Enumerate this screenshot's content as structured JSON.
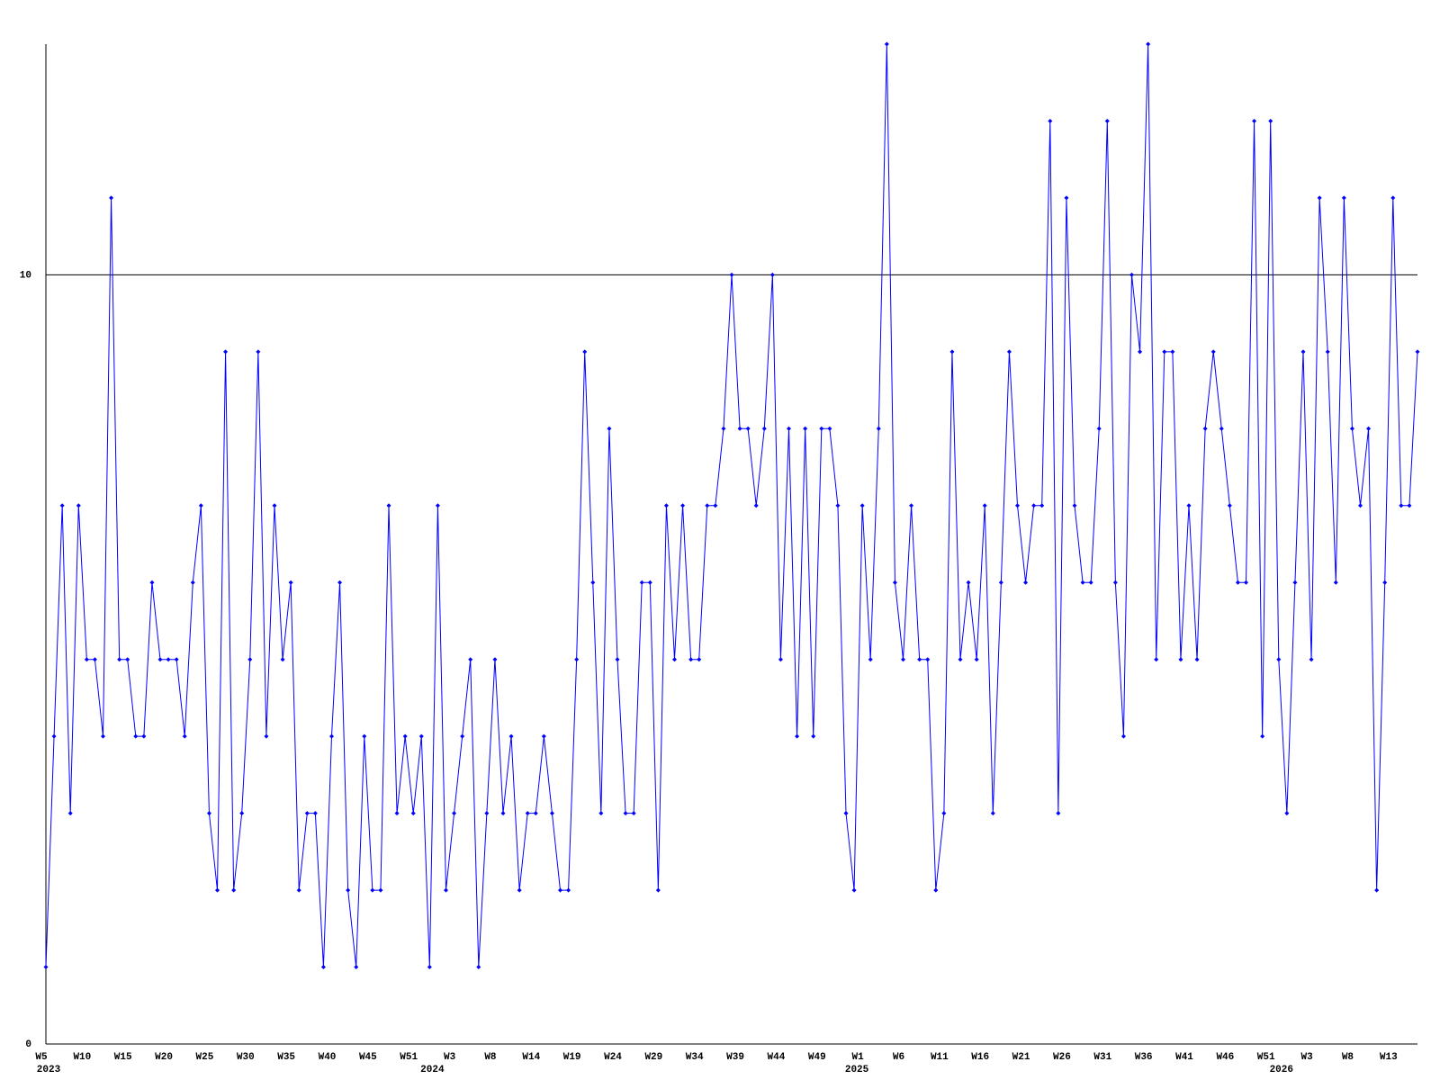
{
  "chart_data": {
    "type": "line",
    "categories": [
      "W5",
      null,
      null,
      null,
      null,
      "W10",
      null,
      null,
      null,
      null,
      "W15",
      null,
      null,
      null,
      null,
      "W20",
      null,
      null,
      null,
      null,
      "W25",
      null,
      null,
      null,
      null,
      "W30",
      null,
      null,
      null,
      null,
      "W35",
      null,
      null,
      null,
      null,
      "W40",
      null,
      null,
      null,
      null,
      "W45",
      null,
      null,
      null,
      null,
      "W51",
      null,
      null,
      null,
      null,
      "W3",
      null,
      null,
      null,
      null,
      "W8",
      null,
      null,
      null,
      null,
      "W14",
      null,
      null,
      null,
      null,
      "W19",
      null,
      null,
      null,
      null,
      "W24",
      null,
      null,
      null,
      null,
      "W29",
      null,
      null,
      null,
      null,
      "W34",
      null,
      null,
      null,
      null,
      "W39",
      null,
      null,
      null,
      null,
      "W44",
      null,
      null,
      null,
      null,
      "W49",
      null,
      null,
      null,
      null,
      "W1",
      null,
      null,
      null,
      null,
      "W6",
      null,
      null,
      null,
      null,
      "W11",
      null,
      null,
      null,
      null,
      "W16",
      null,
      null,
      null,
      null,
      "W21",
      null,
      null,
      null,
      null,
      "W26",
      null,
      null,
      null,
      null,
      "W31",
      null,
      null,
      null,
      null,
      "W36",
      null,
      null,
      null,
      null,
      "W41",
      null,
      null,
      null,
      null,
      "W46",
      null,
      null,
      null,
      null,
      "W51",
      null,
      null,
      null,
      null,
      "W3",
      null,
      null,
      null,
      null,
      "W8",
      null,
      null,
      null,
      null,
      "W13",
      null,
      null,
      null
    ],
    "year_labels": [
      "2023",
      null,
      null,
      null,
      null,
      null,
      null,
      null,
      null,
      null,
      null,
      null,
      null,
      null,
      null,
      null,
      null,
      null,
      null,
      null,
      null,
      null,
      null,
      null,
      null,
      null,
      null,
      null,
      null,
      null,
      null,
      null,
      null,
      null,
      null,
      null,
      null,
      null,
      null,
      null,
      null,
      null,
      null,
      null,
      null,
      null,
      null,
      "2024",
      null,
      null,
      null,
      null,
      null,
      null,
      null,
      null,
      null,
      null,
      null,
      null,
      null,
      null,
      null,
      null,
      null,
      null,
      null,
      null,
      null,
      null,
      null,
      null,
      null,
      null,
      null,
      null,
      null,
      null,
      null,
      null,
      null,
      null,
      null,
      null,
      null,
      null,
      null,
      null,
      null,
      null,
      null,
      null,
      null,
      null,
      null,
      null,
      null,
      null,
      null,
      "2025",
      null,
      null,
      null,
      null,
      null,
      null,
      null,
      null,
      null,
      null,
      null,
      null,
      null,
      null,
      null,
      null,
      null,
      null,
      null,
      null,
      null,
      null,
      null,
      null,
      null,
      null,
      null,
      null,
      null,
      null,
      null,
      null,
      null,
      null,
      null,
      null,
      null,
      null,
      null,
      null,
      null,
      null,
      null,
      null,
      null,
      null,
      null,
      null,
      null,
      null,
      null,
      "2026",
      null,
      null,
      null,
      null,
      null,
      null,
      null,
      null,
      null,
      null,
      null,
      null,
      null,
      null,
      null,
      null
    ],
    "values": [
      1,
      4,
      7,
      3,
      7,
      5,
      5,
      4,
      11,
      5,
      5,
      4,
      4,
      6,
      5,
      5,
      5,
      4,
      6,
      7,
      3,
      2,
      9,
      2,
      3,
      5,
      9,
      4,
      7,
      5,
      6,
      2,
      3,
      3,
      1,
      4,
      6,
      2,
      1,
      4,
      2,
      2,
      7,
      3,
      4,
      3,
      4,
      1,
      7,
      2,
      3,
      4,
      5,
      1,
      3,
      5,
      3,
      4,
      2,
      3,
      3,
      4,
      3,
      2,
      2,
      5,
      9,
      6,
      3,
      8,
      5,
      3,
      3,
      6,
      6,
      2,
      7,
      5,
      7,
      5,
      5,
      7,
      7,
      8,
      10,
      8,
      8,
      7,
      8,
      10,
      5,
      8,
      4,
      8,
      4,
      8,
      8,
      7,
      3,
      2,
      7,
      5,
      8,
      13,
      6,
      5,
      7,
      5,
      5,
      2,
      3,
      9,
      5,
      6,
      5,
      7,
      3,
      6,
      9,
      7,
      6,
      7,
      7,
      12,
      3,
      11,
      7,
      6,
      6,
      8,
      12,
      6,
      4,
      10,
      9,
      13,
      5,
      9,
      9,
      5,
      7,
      5,
      8,
      9,
      8,
      7,
      6,
      6,
      12,
      4,
      12,
      5,
      3,
      6,
      9,
      5,
      11,
      9,
      6,
      11,
      8,
      7,
      8,
      2,
      6,
      11,
      7,
      7,
      9
    ],
    "color": "#0000ff",
    "ylim": [
      0,
      13
    ],
    "yticks": [
      0,
      10
    ],
    "grid": true
  }
}
